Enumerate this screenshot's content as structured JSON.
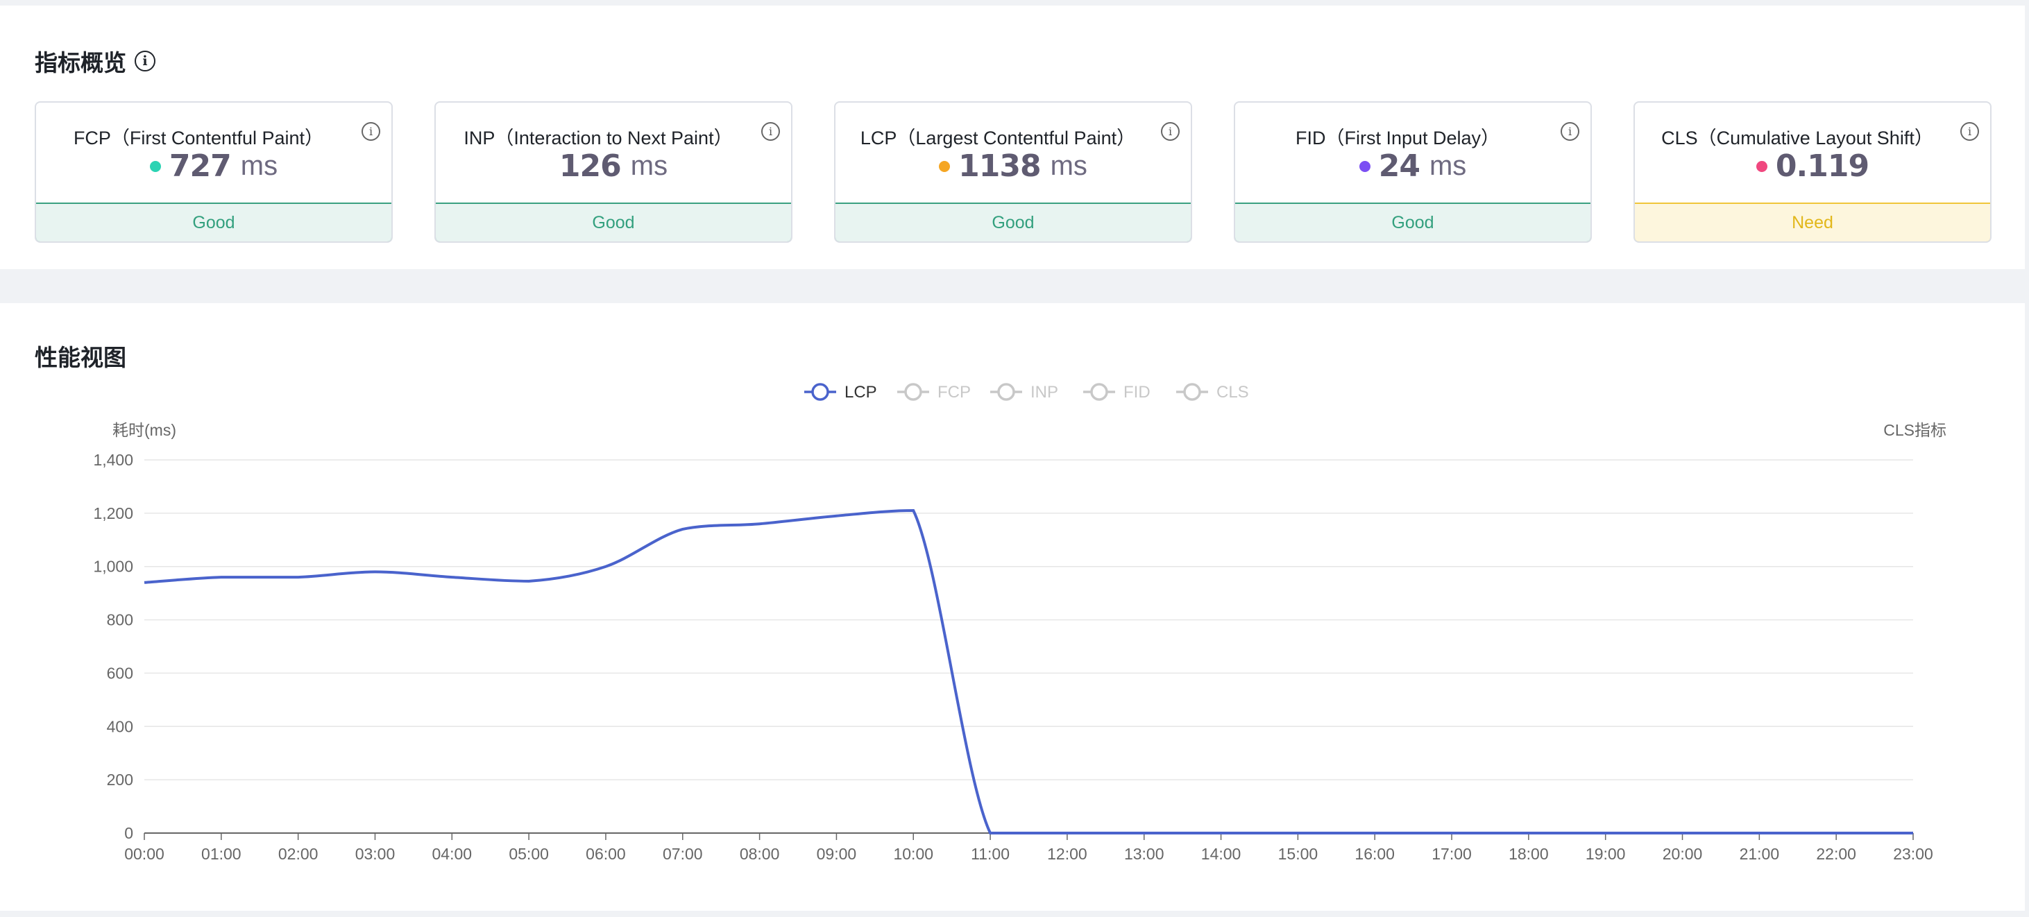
{
  "overview": {
    "title": "指标概览",
    "cards": [
      {
        "title": "FCP（First Contentful Paint）",
        "value": "727",
        "unit": "ms",
        "dot_color": "#2bd3b3",
        "status": "Good",
        "status_type": "good"
      },
      {
        "title": "INP（Interaction to Next Paint）",
        "value": "126",
        "unit": "ms",
        "dot_color": "",
        "status": "Good",
        "status_type": "good"
      },
      {
        "title": "LCP（Largest Contentful Paint）",
        "value": "1138",
        "unit": "ms",
        "dot_color": "#f5a623",
        "status": "Good",
        "status_type": "good"
      },
      {
        "title": "FID（First Input Delay）",
        "value": "24",
        "unit": "ms",
        "dot_color": "#7b4ff3",
        "status": "Good",
        "status_type": "good"
      },
      {
        "title": "CLS（Cumulative Layout Shift）",
        "value": "0.119",
        "unit": "",
        "dot_color": "#f0477f",
        "status": "Need",
        "status_type": "need"
      }
    ]
  },
  "performance": {
    "title": "性能视图",
    "legend": [
      {
        "name": "LCP",
        "active": true,
        "color": "#4a63cc"
      },
      {
        "name": "FCP",
        "active": false,
        "color": "#c8c8c8"
      },
      {
        "name": "INP",
        "active": false,
        "color": "#c8c8c8"
      },
      {
        "name": "FID",
        "active": false,
        "color": "#c8c8c8"
      },
      {
        "name": "CLS",
        "active": false,
        "color": "#c8c8c8"
      }
    ]
  },
  "chart_data": {
    "type": "line",
    "ylabel": "耗时(ms)",
    "y2label": "CLS指标",
    "ylim": [
      0,
      1400
    ],
    "yticks": [
      "0",
      "200",
      "400",
      "600",
      "800",
      "1,000",
      "1,200",
      "1,400"
    ],
    "grid": true,
    "legend_position": "top-center",
    "x": [
      "00:00",
      "01:00",
      "02:00",
      "03:00",
      "04:00",
      "05:00",
      "06:00",
      "07:00",
      "08:00",
      "09:00",
      "10:00",
      "11:00",
      "12:00",
      "13:00",
      "14:00",
      "15:00",
      "16:00",
      "17:00",
      "18:00",
      "19:00",
      "20:00",
      "21:00",
      "22:00",
      "23:00"
    ],
    "series": [
      {
        "name": "LCP",
        "color": "#4a63cc",
        "values": [
          940,
          960,
          960,
          980,
          960,
          945,
          1000,
          1140,
          1160,
          1190,
          1210,
          0,
          0,
          0,
          0,
          0,
          0,
          0,
          0,
          0,
          0,
          0,
          0,
          0
        ]
      }
    ]
  }
}
